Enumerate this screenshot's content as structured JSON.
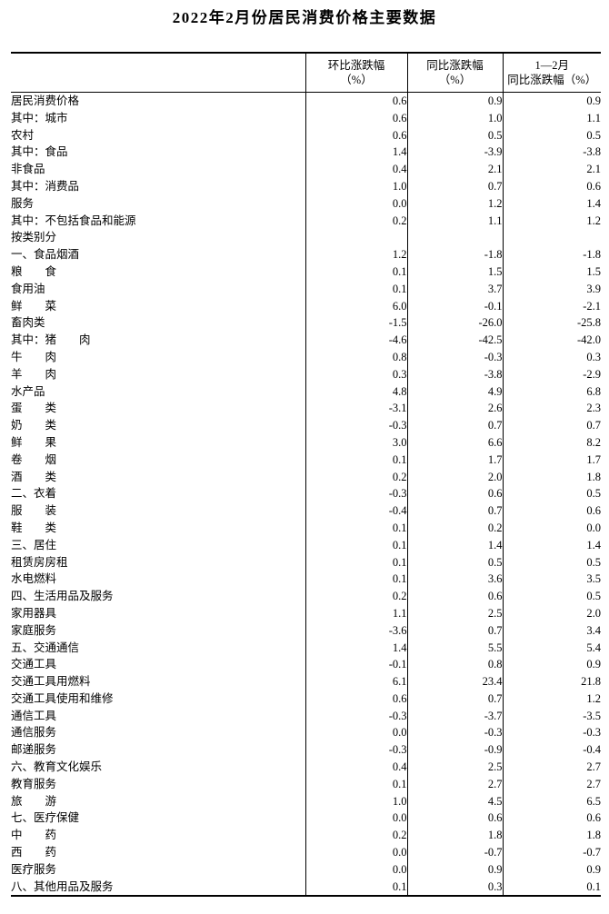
{
  "title": "2022年2月份居民消费价格主要数据",
  "table": {
    "header": {
      "columns": [
        {
          "line1": "环比涨跌幅",
          "line2": "（%）"
        },
        {
          "line1": "同比涨跌幅",
          "line2": "（%）"
        },
        {
          "line1": "1—2月",
          "line2": "同比涨跌幅（%）"
        }
      ]
    },
    "rows": [
      {
        "label": "居民消费价格",
        "ind": 0,
        "v": [
          "0.6",
          "0.9",
          "0.9"
        ]
      },
      {
        "label": "其中：城市",
        "ind": 1,
        "v": [
          "0.6",
          "1.0",
          "1.1"
        ]
      },
      {
        "label": "农村",
        "ind": 2,
        "v": [
          "0.6",
          "0.5",
          "0.5"
        ]
      },
      {
        "label": "其中：食品",
        "ind": 1,
        "v": [
          "1.4",
          "-3.9",
          "-3.8"
        ]
      },
      {
        "label": "非食品",
        "ind": 2,
        "v": [
          "0.4",
          "2.1",
          "2.1"
        ]
      },
      {
        "label": "其中：消费品",
        "ind": 1,
        "v": [
          "1.0",
          "0.7",
          "0.6"
        ]
      },
      {
        "label": "服务",
        "ind": 2,
        "v": [
          "0.0",
          "1.2",
          "1.4"
        ]
      },
      {
        "label": "其中：不包括食品和能源",
        "ind": 1,
        "v": [
          "0.2",
          "1.1",
          "1.2"
        ]
      },
      {
        "label": "按类别分",
        "ind": 0,
        "v": [
          "",
          "",
          ""
        ]
      },
      {
        "label": "一、食品烟酒",
        "ind": 0,
        "v": [
          "1.2",
          "-1.8",
          "-1.8"
        ]
      },
      {
        "label": "粮　　食",
        "ind": 1,
        "v": [
          "0.1",
          "1.5",
          "1.5"
        ]
      },
      {
        "label": "食用油",
        "ind": 1,
        "v": [
          "0.1",
          "3.7",
          "3.9"
        ]
      },
      {
        "label": "鲜　　菜",
        "ind": 1,
        "v": [
          "6.0",
          "-0.1",
          "-2.1"
        ]
      },
      {
        "label": "畜肉类",
        "ind": 1,
        "v": [
          "-1.5",
          "-26.0",
          "-25.8"
        ]
      },
      {
        "label": "其中：猪　　肉",
        "ind": 3,
        "v": [
          "-4.6",
          "-42.5",
          "-42.0"
        ]
      },
      {
        "label": "牛　　肉",
        "ind": 4,
        "v": [
          "0.8",
          "-0.3",
          "0.3"
        ]
      },
      {
        "label": "羊　　肉",
        "ind": 4,
        "v": [
          "0.3",
          "-3.8",
          "-2.9"
        ]
      },
      {
        "label": "水产品",
        "ind": 1,
        "v": [
          "4.8",
          "4.9",
          "6.8"
        ]
      },
      {
        "label": "蛋　　类",
        "ind": 1,
        "v": [
          "-3.1",
          "2.6",
          "2.3"
        ]
      },
      {
        "label": "奶　　类",
        "ind": 1,
        "v": [
          "-0.3",
          "0.7",
          "0.7"
        ]
      },
      {
        "label": "鲜　　果",
        "ind": 1,
        "v": [
          "3.0",
          "6.6",
          "8.2"
        ]
      },
      {
        "label": "卷　　烟",
        "ind": 1,
        "v": [
          "0.1",
          "1.7",
          "1.7"
        ]
      },
      {
        "label": "酒　　类",
        "ind": 1,
        "v": [
          "0.2",
          "2.0",
          "1.8"
        ]
      },
      {
        "label": "二、衣着",
        "ind": 0,
        "v": [
          "-0.3",
          "0.6",
          "0.5"
        ]
      },
      {
        "label": "服　　装",
        "ind": 1,
        "v": [
          "-0.4",
          "0.7",
          "0.6"
        ]
      },
      {
        "label": "鞋　　类",
        "ind": 1,
        "v": [
          "0.1",
          "0.2",
          "0.0"
        ]
      },
      {
        "label": "三、居住",
        "ind": 0,
        "v": [
          "0.1",
          "1.4",
          "1.4"
        ]
      },
      {
        "label": "租赁房房租",
        "ind": 1,
        "v": [
          "0.1",
          "0.5",
          "0.5"
        ]
      },
      {
        "label": "水电燃料",
        "ind": 1,
        "v": [
          "0.1",
          "3.6",
          "3.5"
        ]
      },
      {
        "label": "四、生活用品及服务",
        "ind": 0,
        "v": [
          "0.2",
          "0.6",
          "0.5"
        ]
      },
      {
        "label": "家用器具",
        "ind": 1,
        "v": [
          "1.1",
          "2.5",
          "2.0"
        ]
      },
      {
        "label": "家庭服务",
        "ind": 1,
        "v": [
          "-3.6",
          "0.7",
          "3.4"
        ]
      },
      {
        "label": "五、交通通信",
        "ind": 0,
        "v": [
          "1.4",
          "5.5",
          "5.4"
        ]
      },
      {
        "label": "交通工具",
        "ind": 1,
        "v": [
          "-0.1",
          "0.8",
          "0.9"
        ]
      },
      {
        "label": "交通工具用燃料",
        "ind": 1,
        "v": [
          "6.1",
          "23.4",
          "21.8"
        ]
      },
      {
        "label": "交通工具使用和维修",
        "ind": 1,
        "v": [
          "0.6",
          "0.7",
          "1.2"
        ]
      },
      {
        "label": "通信工具",
        "ind": 1,
        "v": [
          "-0.3",
          "-3.7",
          "-3.5"
        ]
      },
      {
        "label": "通信服务",
        "ind": 1,
        "v": [
          "0.0",
          "-0.3",
          "-0.3"
        ]
      },
      {
        "label": "邮递服务",
        "ind": 1,
        "v": [
          "-0.3",
          "-0.9",
          "-0.4"
        ]
      },
      {
        "label": "六、教育文化娱乐",
        "ind": 0,
        "v": [
          "0.4",
          "2.5",
          "2.7"
        ]
      },
      {
        "label": "教育服务",
        "ind": 1,
        "v": [
          "0.1",
          "2.7",
          "2.7"
        ]
      },
      {
        "label": "旅　　游",
        "ind": 1,
        "v": [
          "1.0",
          "4.5",
          "6.5"
        ]
      },
      {
        "label": "七、医疗保健",
        "ind": 0,
        "v": [
          "0.0",
          "0.6",
          "0.6"
        ]
      },
      {
        "label": "中　　药",
        "ind": 1,
        "v": [
          "0.2",
          "1.8",
          "1.8"
        ]
      },
      {
        "label": "西　　药",
        "ind": 1,
        "v": [
          "0.0",
          "-0.7",
          "-0.7"
        ]
      },
      {
        "label": "医疗服务",
        "ind": 1,
        "v": [
          "0.0",
          "0.9",
          "0.9"
        ]
      },
      {
        "label": "八、其他用品及服务",
        "ind": 0,
        "v": [
          "0.1",
          "0.3",
          "0.1"
        ]
      }
    ]
  }
}
